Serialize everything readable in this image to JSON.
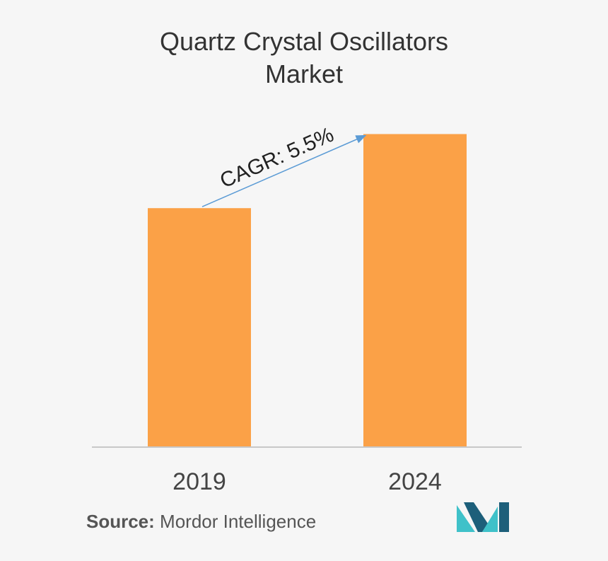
{
  "chart_data": {
    "type": "bar",
    "title_lines": [
      "Quartz Crystal Oscillators",
      "Market"
    ],
    "categories": [
      "2019",
      "2024"
    ],
    "values": [
      1.0,
      1.31
    ],
    "ylim": [
      0,
      1.35
    ],
    "xlabel": "",
    "ylabel": "",
    "grid": false,
    "bar_color": "#fba147",
    "annotation": {
      "text": "CAGR: 5.5%",
      "color": "#5b9bd5"
    }
  },
  "source": {
    "prefix": "Source:",
    "name": "Mordor Intelligence"
  },
  "colors": {
    "background": "#f6f6f6",
    "bar": "#fba147",
    "arrow": "#5b9bd5",
    "logo_dark": "#1d5f7a",
    "logo_light": "#3fc1c9"
  }
}
